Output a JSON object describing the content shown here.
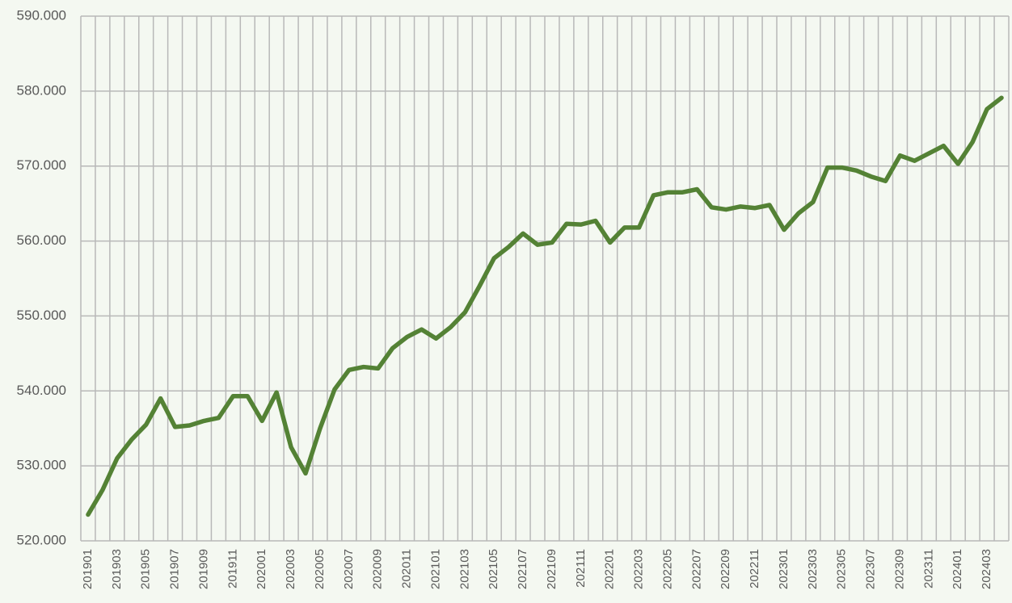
{
  "chart_data": {
    "type": "line",
    "categories": [
      "201901",
      null,
      "201903",
      null,
      "201905",
      null,
      "201907",
      null,
      "201909",
      null,
      "201911",
      null,
      "202001",
      null,
      "202003",
      null,
      "202005",
      null,
      "202007",
      null,
      "202009",
      null,
      "202011",
      null,
      "202101",
      null,
      "202103",
      null,
      "202105",
      null,
      "202107",
      null,
      "202109",
      null,
      "202111",
      null,
      "202201",
      null,
      "202203",
      null,
      "202205",
      null,
      "202207",
      null,
      "202209",
      null,
      "202211",
      null,
      "202301",
      null,
      "202303",
      null,
      "202305",
      null,
      "202307",
      null,
      "202309",
      null,
      "202311",
      null,
      "202401",
      null,
      "202403",
      null
    ],
    "series": [
      {
        "name": null,
        "color": "#548235",
        "values": [
          523.5,
          526.8,
          531,
          533.5,
          535.5,
          539,
          535.2,
          535.4,
          536,
          536.4,
          539.3,
          539.3,
          536,
          539.8,
          532.5,
          529,
          535,
          540.2,
          542.8,
          543.2,
          543,
          545.7,
          547.2,
          548.2,
          547,
          548.5,
          550.5,
          554,
          557.7,
          559.2,
          561,
          559.5,
          559.8,
          562.3,
          562.2,
          562.7,
          559.8,
          561.8,
          561.8,
          566.1,
          566.5,
          566.5,
          566.9,
          564.5,
          564.2,
          564.6,
          564.4,
          564.8,
          561.5,
          563.7,
          565.2,
          569.8,
          569.8,
          569.4,
          568.6,
          568,
          571.4,
          570.7,
          571.7,
          572.7,
          570.3,
          573.2,
          577.6,
          579.1
        ]
      }
    ],
    "ylim": [
      520,
      590
    ],
    "yticks": [
      {
        "value": 520,
        "label": "520.000"
      },
      {
        "value": 530,
        "label": "530.000"
      },
      {
        "value": 540,
        "label": "540.000"
      },
      {
        "value": 550,
        "label": "550.000"
      },
      {
        "value": 560,
        "label": "560.000"
      },
      {
        "value": 570,
        "label": "570.000"
      },
      {
        "value": 580,
        "label": "580.000"
      },
      {
        "value": 590,
        "label": "590.000"
      }
    ],
    "grid": true
  }
}
